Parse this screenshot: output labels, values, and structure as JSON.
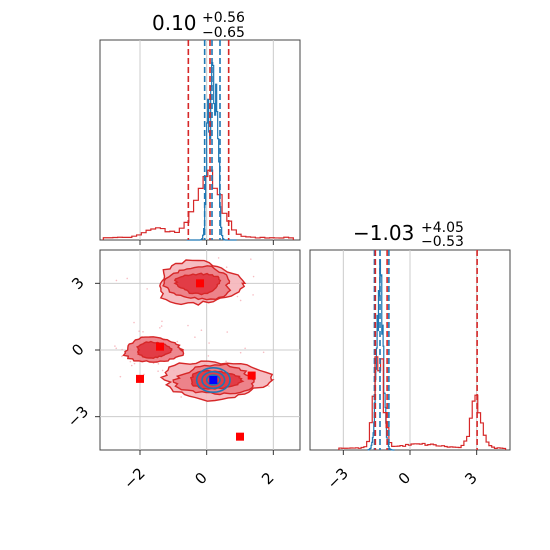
{
  "colors": {
    "blue": "#1f77b4",
    "red": "#d62728",
    "marker_red": "#ff0000",
    "marker_blue": "#0000ff",
    "grid": "#cccccc"
  },
  "chart_data": [
    {
      "type": "histogram",
      "panel": "top-left",
      "title": {
        "main": "0.10",
        "plus": "+0.56",
        "minus": "−0.65"
      },
      "xlim": [
        -3.2,
        2.8
      ],
      "xticks": [
        -2,
        0,
        2
      ],
      "grid": true,
      "series": [
        {
          "color": "#1f77b4",
          "dashed_lines": [
            -0.06,
            0.16,
            0.4
          ],
          "peaks": [
            {
              "x": 0.18,
              "height": 0.92
            },
            {
              "x": 0.06,
              "height": 0.7
            },
            {
              "x": 0.3,
              "height": 0.75
            }
          ],
          "range": [
            -0.6,
            0.9
          ]
        },
        {
          "color": "#d62728",
          "dashed_lines": [
            -0.55,
            0.1,
            0.66
          ],
          "shape": "broad",
          "peak_height": 0.3,
          "range": [
            -3.1,
            2.6
          ]
        }
      ]
    },
    {
      "type": "contour",
      "panel": "bottom-left",
      "xlim": [
        -3.2,
        2.8
      ],
      "ylim": [
        -4.5,
        4.5
      ],
      "xticks": [
        -2,
        0,
        2
      ],
      "xtick_labels": [
        "−2",
        "0",
        "2"
      ],
      "yticks": [
        3,
        0,
        -3
      ],
      "ytick_labels": [
        "3",
        "0",
        "−3"
      ],
      "grid": true,
      "red_modes": [
        {
          "x": -0.25,
          "y": 3.0
        },
        {
          "x": 0.25,
          "y": -1.35
        },
        {
          "x": -1.6,
          "y": 0.0
        }
      ],
      "blue_mode": {
        "x": 0.2,
        "y": -1.35
      },
      "red_markers": [
        {
          "x": -0.2,
          "y": 3.0
        },
        {
          "x": -1.4,
          "y": 0.15
        },
        {
          "x": -2.0,
          "y": -1.3
        },
        {
          "x": 1.35,
          "y": -1.15
        },
        {
          "x": 1.0,
          "y": -3.9
        }
      ],
      "blue_markers": [
        {
          "x": 0.2,
          "y": -1.35
        }
      ]
    },
    {
      "type": "histogram",
      "panel": "bottom-right",
      "title": {
        "main": "−1.03",
        "plus": "+4.05",
        "minus": "−0.53"
      },
      "xlim": [
        -4.5,
        4.5
      ],
      "xticks": [
        -3,
        0,
        3
      ],
      "xtick_labels": [
        "−3",
        "0",
        "3"
      ],
      "grid": true,
      "series": [
        {
          "color": "#1f77b4",
          "dashed_lines": [
            -1.6,
            -1.35,
            -0.95
          ],
          "peaks": [
            {
              "x": -1.35,
              "height": 0.92
            }
          ],
          "range": [
            -1.9,
            -0.7
          ]
        },
        {
          "color": "#d62728",
          "dashed_lines": [
            -1.56,
            -1.03,
            3.02
          ],
          "modes": [
            {
              "x": -1.4,
              "height": 0.48
            },
            {
              "x": 3.0,
              "height": 0.24
            }
          ],
          "range": [
            -3.2,
            4.3
          ]
        }
      ]
    }
  ]
}
